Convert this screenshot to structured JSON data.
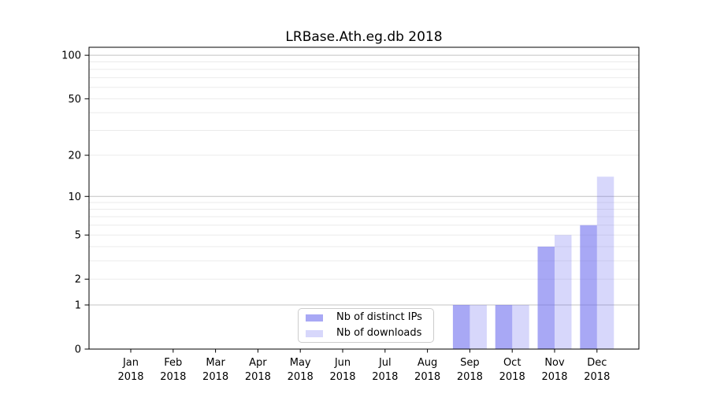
{
  "title": "LRBase.Ath.eg.db 2018",
  "chart_data": {
    "type": "bar",
    "title": "LRBase.Ath.eg.db 2018",
    "categories": [
      "Jan",
      "Feb",
      "Mar",
      "Apr",
      "May",
      "Jun",
      "Jul",
      "Aug",
      "Sep",
      "Oct",
      "Nov",
      "Dec"
    ],
    "year": "2018",
    "xlabel": "",
    "ylabel": "",
    "yscale": "log1p",
    "ylim": [
      0,
      113.5
    ],
    "yticks": [
      0,
      1,
      2,
      5,
      10,
      20,
      50,
      100
    ],
    "grid": true,
    "major_gridlines": [
      1,
      10,
      100
    ],
    "minor_gridlines": [
      2,
      3,
      4,
      5,
      6,
      7,
      8,
      9,
      20,
      30,
      40,
      50,
      60,
      70,
      80,
      90
    ],
    "legend_position": "lower center, inside plot",
    "series": [
      {
        "name": "Nb of distinct IPs",
        "color": "#6666ee",
        "opacity": 0.57,
        "values": [
          0,
          0,
          0,
          0,
          0,
          0,
          0,
          0,
          1,
          1,
          4,
          6
        ]
      },
      {
        "name": "Nb of downloads",
        "color": "#6666ee",
        "opacity": 0.26,
        "values": [
          0,
          0,
          0,
          0,
          0,
          0,
          0,
          0,
          1,
          1,
          5,
          14
        ]
      }
    ],
    "colors": {
      "bar_distinct_ips_rendered": "#a8a8f8",
      "bar_downloads_rendered": "#d8d8f8",
      "major_grid": "#c3c3c3",
      "minor_grid": "#ebebeb",
      "axis": "#000000",
      "legend_border": "#cccccc",
      "background": "#ffffff"
    }
  }
}
